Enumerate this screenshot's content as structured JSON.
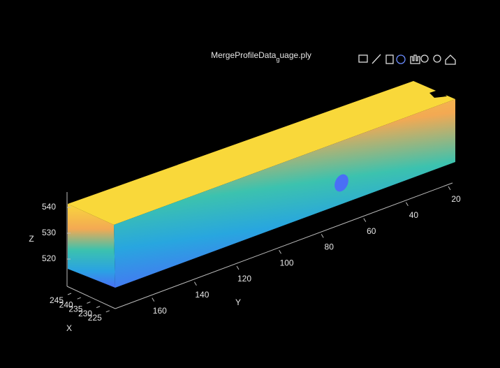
{
  "title": {
    "main": "MergeProfileData",
    "subscript": "g",
    "rest": "uage.ply"
  },
  "axes": {
    "x": {
      "label": "X",
      "ticks": [
        245,
        240,
        235,
        230,
        225
      ]
    },
    "y": {
      "label": "Y",
      "ticks": [
        20,
        40,
        60,
        80,
        100,
        120,
        140,
        160
      ]
    },
    "z": {
      "label": "Z",
      "ticks": [
        540,
        530,
        520
      ]
    }
  }
}
